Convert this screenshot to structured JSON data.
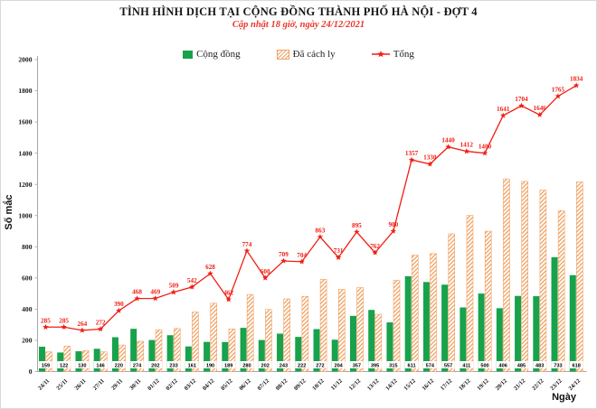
{
  "chart_data": {
    "type": "bar",
    "subtype": "grouped-bars-with-line",
    "title": "TÌNH HÌNH DỊCH TẠI CỘNG ĐỒNG THÀNH PHỐ HÀ NỘI - ĐỢT 4",
    "subtitle": "Cập nhật 18 giờ, ngày 24/12/2021",
    "xlabel": "Ngày",
    "ylabel": "Số mắc",
    "ylim": [
      0,
      2000
    ],
    "ytick_step": 200,
    "grid": false,
    "legend_position": "top",
    "axis_color": "#a6a6a6",
    "categories": [
      "24/11",
      "25/11",
      "26/11",
      "27/11",
      "29/11",
      "30/11",
      "01/12",
      "02/12",
      "03/12",
      "04/12",
      "05/12",
      "06/12",
      "07/12",
      "08/12",
      "09/12",
      "10/12",
      "11/12",
      "12/12",
      "13/12",
      "14/12",
      "15/12",
      "16/12",
      "17/12",
      "18/12",
      "19/12",
      "20/12",
      "21/12",
      "22/12",
      "23/12",
      "24/12"
    ],
    "series": [
      {
        "name": "Cộng đồng",
        "type": "bar",
        "color": "#17a24b",
        "values": [
          159,
          122,
          130,
          146,
          220,
          274,
          202,
          233,
          161,
          190,
          189,
          280,
          202,
          243,
          222,
          272,
          204,
          357,
          395,
          315,
          611,
          574,
          557,
          411,
          500,
          406,
          485,
          483,
          733,
          618
        ],
        "value_labels": "at-base-on-white-box"
      },
      {
        "name": "Đã cách ly",
        "type": "bar",
        "style": "hatched",
        "color": "#f0a263",
        "values": [
          126,
          163,
          134,
          126,
          170,
          194,
          267,
          276,
          381,
          438,
          273,
          494,
          398,
          466,
          482,
          591,
          527,
          538,
          367,
          585,
          746,
          756,
          883,
          1001,
          900,
          1235,
          1219,
          1163,
          1032,
          1216
        ],
        "note": "unlabeled bars; heights estimated as Tổng minus Cộng đồng, matching pixel heights"
      },
      {
        "name": "Tổng",
        "type": "line",
        "color": "#f01e14",
        "marker": "star",
        "values": [
          285,
          285,
          264,
          272,
          390,
          468,
          469,
          509,
          542,
          628,
          462,
          774,
          600,
          709,
          704,
          863,
          731,
          895,
          762,
          900,
          1357,
          1330,
          1440,
          1412,
          1400,
          1641,
          1704,
          1646,
          1765,
          1834
        ],
        "value_labels": "above-points"
      }
    ]
  }
}
